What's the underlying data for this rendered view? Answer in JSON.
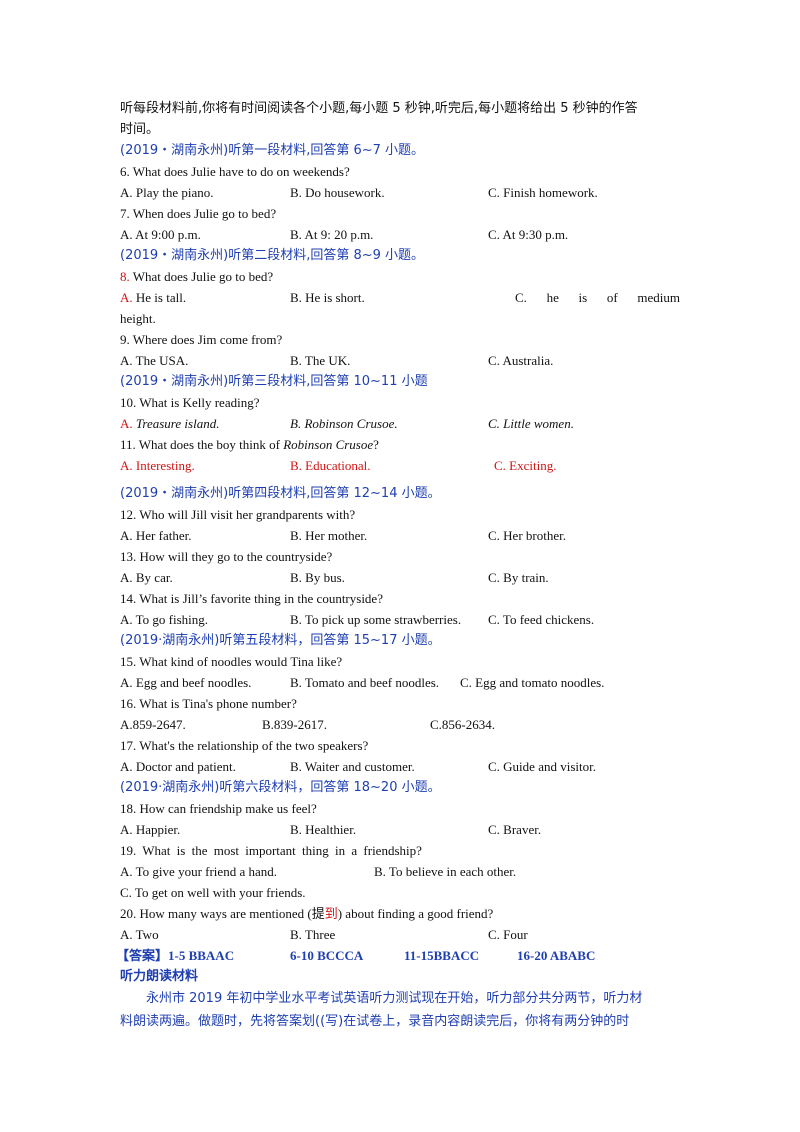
{
  "intro": {
    "line1": "听每段材料前,你将有时间阅读各个小题,每小题 5 秒钟,听完后,每小题将给出 5 秒钟的作答",
    "line2": "时间。"
  },
  "section1": "(2019・湖南永州)听第一段材料,回答第 6~7 小题。",
  "q6": {
    "text": "6. What does Julie have to do on weekends?",
    "a": "A. Play  the  piano.",
    "b": "B. Do housework.",
    "c": "C.  Finish  homework."
  },
  "q7": {
    "text": "7.  When does Julie go to bed?",
    "a": "A. At 9:00 p.m.",
    "b": "B. At 9: 20 p.m.",
    "c": "C.  At  9:30 p.m."
  },
  "section2": "(2019・湖南永州)听第二段材料,回答第 8~9 小题。",
  "q8": {
    "num": "8.",
    "text": " What does Julie go to bed?",
    "a_label": "A.",
    "a_text": " He  is  tall.",
    "b": "B.  He  is  short.",
    "c_words": [
      "C.",
      "he",
      "is",
      "of",
      "medium"
    ],
    "c_cont": "height."
  },
  "q9": {
    "text": "9. Where does Jim come from?",
    "a": "A. The USA.",
    "b": "B. The UK.",
    "c": "C.  Australia."
  },
  "section3": "(2019・湖南永州)听第三段材料,回答第 10~11 小题",
  "q10": {
    "text": "10.  What is Kelly reading?",
    "a_label": "A.",
    "a_text": "Treasure island.",
    "b": "B.  Robinson Crusoe.",
    "c": "C. Little women."
  },
  "q11": {
    "text_pre": "11.  What does the boy think of ",
    "text_title": "Robinson Crusoe",
    "text_post": "?",
    "a": "A.  Interesting.",
    "b": "B.  Educational.",
    "c": "C.  Exciting."
  },
  "section4": "(2019・湖南永州)听第四段材料,回答第 12~14 小题。",
  "q12": {
    "text": "12. Who will Jill visit her grandparents with?",
    "a": "A. Her father.",
    "b": "B. Her mother.",
    "c": "C. Her brother."
  },
  "q13": {
    "text": "13. How will they go to the countryside?",
    "a": "A. By  car.",
    "b": "B. By  bus.",
    "c": "C. By train."
  },
  "q14": {
    "text": "14. What is Jill’s favorite thing in the countryside?",
    "a": "A. To go fishing.",
    "b": "B. To  pick up some strawberries.",
    "c": "C. To feed chickens."
  },
  "section5": "(2019·湖南永州)听第五段材料，回答第 15~17 小题。",
  "q15": {
    "text": "15. What kind of noodles would Tina like?",
    "a": "A. Egg and beef  noodles.",
    "b": "B. Tomato and beef noodles.",
    "c": "C. Egg and tomato noodles."
  },
  "q16": {
    "text": "16. What is Tina's phone number?",
    "a": "A.859-2647.",
    "b": "B.839-2617.",
    "c": "C.856-2634."
  },
  "q17": {
    "text": "17. What's the relationship of the two speakers?",
    "a": "A. Doctor and patient.",
    "b": "B. Waiter and customer.",
    "c": "C. Guide and visitor."
  },
  "section6": "(2019·湖南永州)听第六段材料，回答第 18~20 小题。",
  "q18": {
    "text": "18. How can friendship make us feel?",
    "a": "A. Happier.",
    "b": "B. Healthier.",
    "c": "C. Braver."
  },
  "q19": {
    "text": "19.  What  is  the  most  important  thing  in  a  friendship?",
    "a": "A.  To  give  your  friend  a  hand.",
    "b": "B.  To  believe  in  each  other.",
    "c": "C.  To  get  on  well  with  your  friends."
  },
  "q20": {
    "text_pre": "20.  How  many  ways  are  mentioned  (提",
    "text_red": "到",
    "text_post": ")  about  finding  a  good  friend?",
    "a": "A.  Two",
    "b": "B.  Three",
    "c": "C.  Four"
  },
  "answer": {
    "label": "【答案】1-5 BBAAC",
    "g2": "6-10 BCCCA",
    "g3": "11-15BBACC",
    "g4": "16-20 ABABC"
  },
  "script_heading": "听力朗读材料",
  "script": {
    "line1": "永州市 2019 年初中学业水平考试英语听力测试现在开始，听力部分共分两节，听力材",
    "line2": "料朗读两遍。做题时，先将答案划((写)在试卷上，录音内容朗读完后，你将有两分钟的时"
  }
}
